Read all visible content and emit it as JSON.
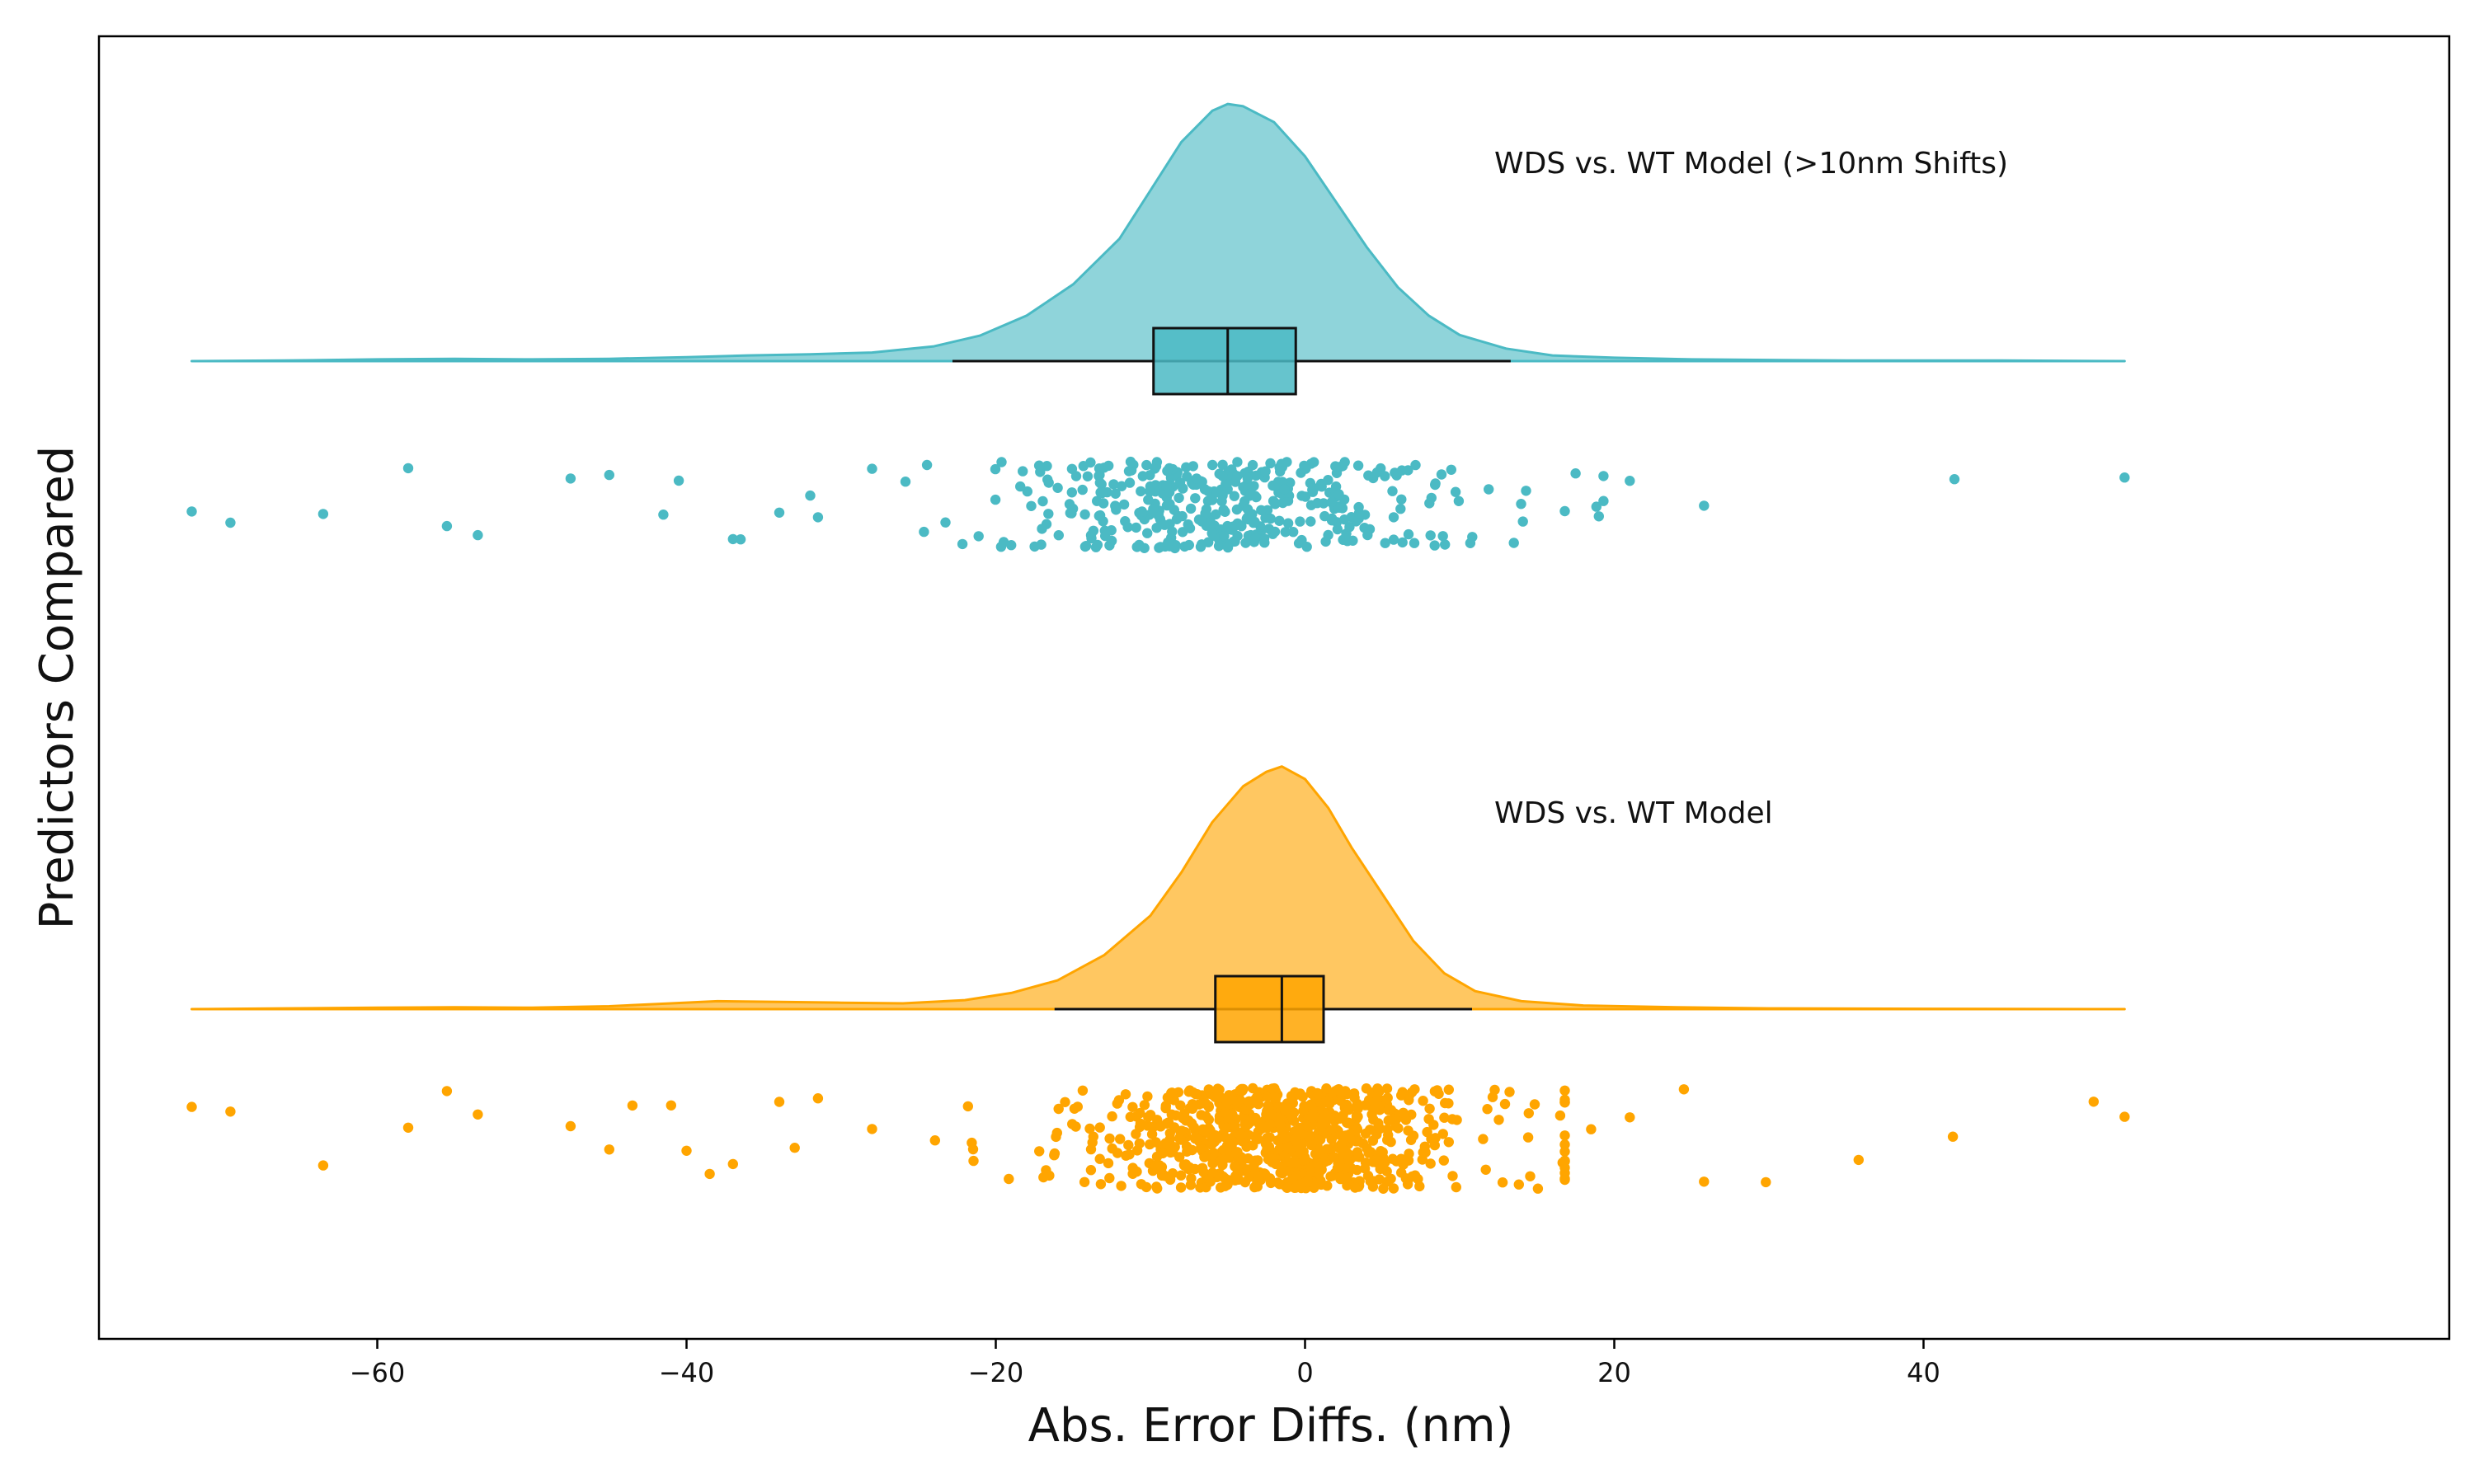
{
  "chart_data": {
    "type": "raincloud",
    "title": "",
    "xlabel": "Abs. Error Diffs. (nm)",
    "ylabel": "Predictors Compared",
    "xlim": [
      -78,
      74
    ],
    "xticks": [
      -60,
      -40,
      -20,
      0,
      20,
      40
    ],
    "xtick_labels": [
      "−60",
      "−40",
      "−20",
      "0",
      "20",
      "40"
    ],
    "orientation": "horizontal",
    "grid": false,
    "series": [
      {
        "name": "WDS vs. WT Model (>10nm Shifts)",
        "color": "#4bbac4",
        "n_points": 420,
        "range": [
          -72,
          53
        ],
        "box": {
          "whisker_low": -22.8,
          "q1": -9.8,
          "median": -5.0,
          "q3": -0.6,
          "whisker_high": 13.3
        },
        "density": [
          [
            -72,
            0.0
          ],
          [
            -66,
            0.001
          ],
          [
            -60,
            0.003
          ],
          [
            -55,
            0.004
          ],
          [
            -50,
            0.003
          ],
          [
            -45,
            0.004
          ],
          [
            -40,
            0.007
          ],
          [
            -36,
            0.01
          ],
          [
            -32,
            0.012
          ],
          [
            -28,
            0.015
          ],
          [
            -24,
            0.026
          ],
          [
            -21,
            0.045
          ],
          [
            -18,
            0.08
          ],
          [
            -15,
            0.135
          ],
          [
            -12,
            0.215
          ],
          [
            -10,
            0.3
          ],
          [
            -8,
            0.385
          ],
          [
            -6,
            0.44
          ],
          [
            -5,
            0.452
          ],
          [
            -4,
            0.448
          ],
          [
            -2,
            0.42
          ],
          [
            0,
            0.36
          ],
          [
            2,
            0.28
          ],
          [
            4,
            0.2
          ],
          [
            6,
            0.13
          ],
          [
            8,
            0.08
          ],
          [
            10,
            0.046
          ],
          [
            13,
            0.022
          ],
          [
            16,
            0.01
          ],
          [
            20,
            0.006
          ],
          [
            25,
            0.003
          ],
          [
            30,
            0.002
          ],
          [
            35,
            0.001
          ],
          [
            45,
            0.001
          ],
          [
            53,
            0.0
          ]
        ],
        "outliers": [
          -72,
          -69.5,
          -63.5,
          -58,
          -55.5,
          -53.5,
          -47.5,
          -45,
          -41.5,
          -40.5,
          -37,
          -36.5,
          -34,
          -32,
          -31.5,
          -28,
          16.8,
          17.5,
          19,
          21,
          25.8,
          42,
          53
        ]
      },
      {
        "name": "WDS vs. WT Model",
        "color": "#ffa500",
        "n_points": 900,
        "range": [
          -72,
          53
        ],
        "box": {
          "whisker_low": -16.2,
          "q1": -5.8,
          "median": -1.5,
          "q3": 1.2,
          "whisker_high": 10.8
        },
        "density": [
          [
            -72,
            0.0
          ],
          [
            -66,
            0.002
          ],
          [
            -60,
            0.004
          ],
          [
            -55,
            0.005
          ],
          [
            -50,
            0.004
          ],
          [
            -45,
            0.008
          ],
          [
            -41,
            0.016
          ],
          [
            -38,
            0.022
          ],
          [
            -34,
            0.02
          ],
          [
            -30,
            0.018
          ],
          [
            -26,
            0.016
          ],
          [
            -22,
            0.025
          ],
          [
            -19,
            0.045
          ],
          [
            -16,
            0.08
          ],
          [
            -13,
            0.15
          ],
          [
            -10,
            0.26
          ],
          [
            -8,
            0.38
          ],
          [
            -6,
            0.52
          ],
          [
            -4,
            0.62
          ],
          [
            -2.5,
            0.66
          ],
          [
            -1.5,
            0.675
          ],
          [
            0,
            0.64
          ],
          [
            1.5,
            0.56
          ],
          [
            3,
            0.45
          ],
          [
            5,
            0.32
          ],
          [
            7,
            0.19
          ],
          [
            9,
            0.1
          ],
          [
            11,
            0.05
          ],
          [
            14,
            0.022
          ],
          [
            18,
            0.01
          ],
          [
            24,
            0.005
          ],
          [
            30,
            0.002
          ],
          [
            40,
            0.001
          ],
          [
            53,
            0.0
          ]
        ],
        "outliers": [
          -72,
          -69.5,
          -63.5,
          -58,
          -55.5,
          -53.5,
          -47.5,
          -45,
          -43.5,
          -41,
          -40,
          -38.5,
          -37,
          -34,
          -33,
          -31.5,
          -28,
          16.5,
          18.5,
          21,
          24.5,
          25.8,
          29.8,
          35.8,
          41.9,
          51,
          53
        ]
      }
    ]
  }
}
